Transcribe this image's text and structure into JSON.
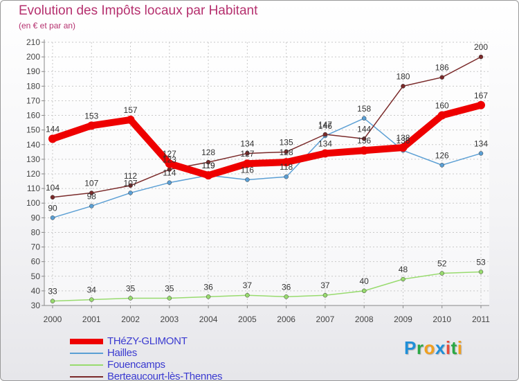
{
  "header": {
    "title": "Evolution des Impôts locaux par Habitant",
    "subtitle": "(en € et par an)"
  },
  "chart_data": {
    "type": "line",
    "title": "Evolution des Impôts locaux par Habitant",
    "subtitle": "(en € et par an)",
    "xlabel": "",
    "ylabel": "",
    "x": [
      "2000",
      "2001",
      "2002",
      "2003",
      "2004",
      "2005",
      "2006",
      "2007",
      "2008",
      "2009",
      "2010",
      "2011"
    ],
    "ylim": [
      30,
      210
    ],
    "yticks": [
      30,
      40,
      50,
      60,
      70,
      80,
      90,
      100,
      110,
      120,
      130,
      140,
      150,
      160,
      170,
      180,
      190,
      200,
      210
    ],
    "grid": true,
    "legend_position": "bottom-left",
    "series": [
      {
        "name": "THéZY-GLIMONT",
        "color": "#ee0000",
        "values": [
          144,
          153,
          157,
          127,
          119,
          127,
          128,
          134,
          136,
          138,
          160,
          167
        ]
      },
      {
        "name": "Hailles",
        "color": "#5b9fd4",
        "values": [
          90,
          98,
          107,
          114,
          119,
          116,
          118,
          146,
          158,
          136,
          126,
          134
        ]
      },
      {
        "name": "Fouencamps",
        "color": "#98db6e",
        "values": [
          33,
          34,
          35,
          35,
          36,
          37,
          36,
          37,
          40,
          48,
          52,
          53
        ]
      },
      {
        "name": "Berteaucourt-lès-Thennes",
        "color": "#7a2a2a",
        "values": [
          104,
          107,
          112,
          123,
          128,
          134,
          135,
          147,
          144,
          180,
          186,
          200
        ]
      }
    ]
  },
  "logo": {
    "letters": [
      "P",
      "r",
      "o",
      "x",
      "i",
      "t",
      "i"
    ],
    "colors": [
      "#1f8fd8",
      "#2aa845",
      "#f0a020",
      "#1f8fd8",
      "#e94a3a",
      "#2aa845",
      "#f0a020"
    ]
  }
}
